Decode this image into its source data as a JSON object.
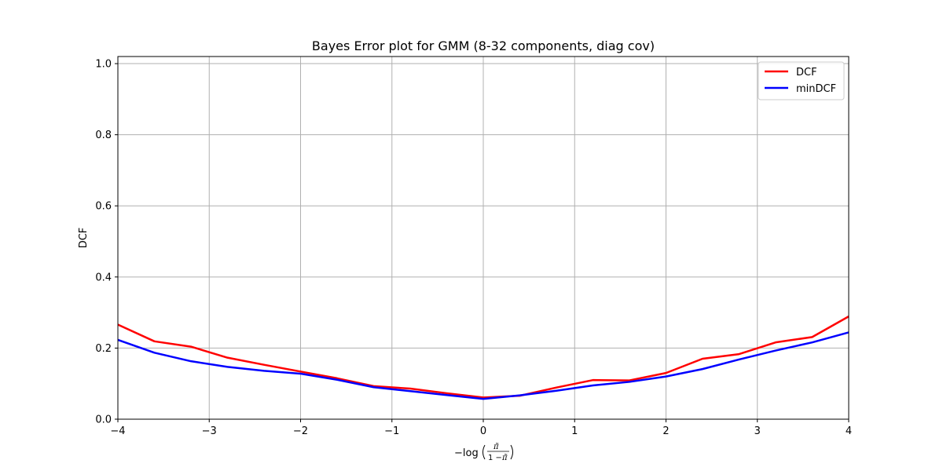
{
  "chart_data": {
    "type": "line",
    "title": "Bayes Error plot for GMM (8-32 components, diag cov)",
    "xlabel": "-log(π̃ / (1 - π̃))",
    "ylabel": "DCF",
    "xlim": [
      -4,
      4
    ],
    "ylim": [
      0,
      1.02
    ],
    "xticks": [
      -4,
      -3,
      -2,
      -1,
      0,
      1,
      2,
      3,
      4
    ],
    "xtick_labels": [
      "−4",
      "−3",
      "−2",
      "−1",
      "0",
      "1",
      "2",
      "3",
      "4"
    ],
    "yticks": [
      0.0,
      0.2,
      0.4,
      0.6,
      0.8,
      1.0
    ],
    "ytick_labels": [
      "0.0",
      "0.2",
      "0.4",
      "0.6",
      "0.8",
      "1.0"
    ],
    "grid": true,
    "legend_position": "top-right",
    "x": [
      -4.0,
      -3.6,
      -3.2,
      -2.8,
      -2.4,
      -2.0,
      -1.6,
      -1.2,
      -0.8,
      -0.4,
      0.0,
      0.4,
      0.8,
      1.2,
      1.6,
      2.0,
      2.4,
      2.8,
      3.2,
      3.6,
      4.0
    ],
    "series": [
      {
        "name": "DCF",
        "color": "#ff0000",
        "values": [
          0.266,
          0.219,
          0.204,
          0.173,
          0.153,
          0.134,
          0.115,
          0.093,
          0.086,
          0.073,
          0.061,
          0.066,
          0.089,
          0.11,
          0.109,
          0.13,
          0.17,
          0.183,
          0.216,
          0.231,
          0.289
        ]
      },
      {
        "name": "minDCF",
        "color": "#0000ff",
        "values": [
          0.223,
          0.187,
          0.163,
          0.147,
          0.136,
          0.128,
          0.111,
          0.09,
          0.079,
          0.068,
          0.057,
          0.067,
          0.08,
          0.095,
          0.105,
          0.12,
          0.141,
          0.168,
          0.193,
          0.216,
          0.244
        ]
      }
    ]
  }
}
